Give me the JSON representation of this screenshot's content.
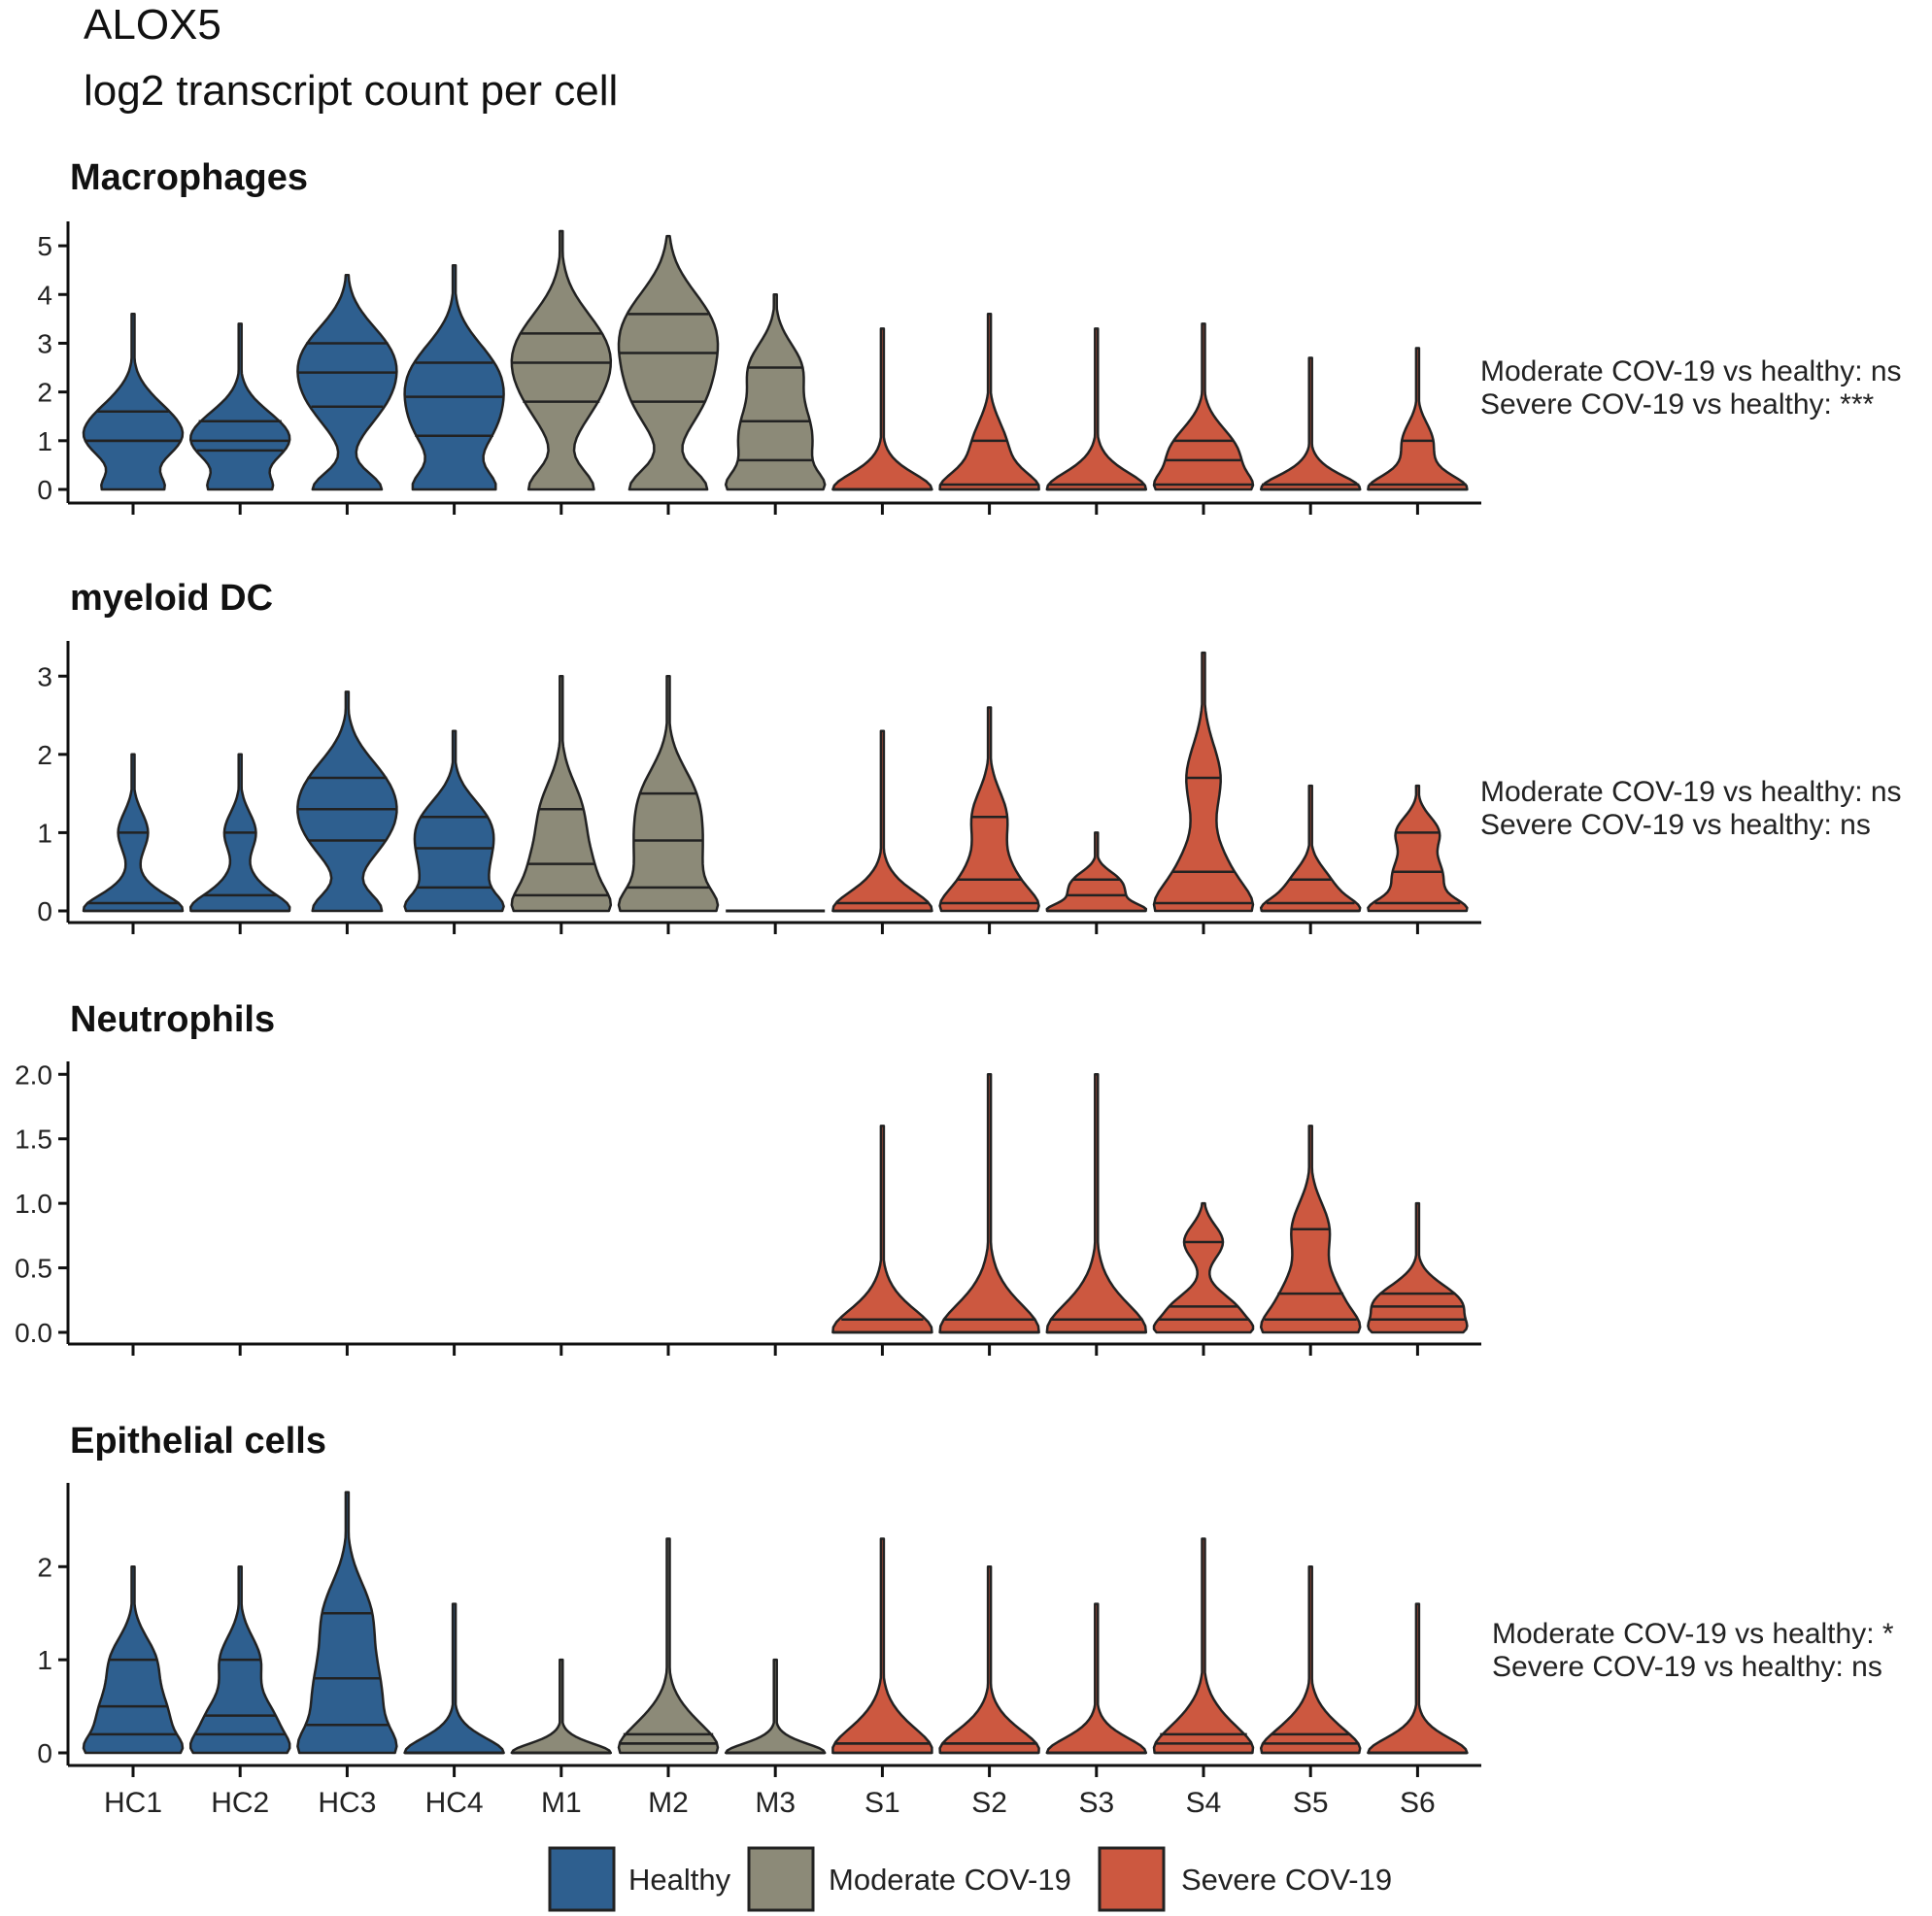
{
  "figure": {
    "title": "ALOX5",
    "subtitle": "log2 transcript count per cell"
  },
  "legend": [
    {
      "label": "Healthy",
      "color": "#2e5f8f"
    },
    {
      "label": "Moderate COV-19",
      "color": "#8c8a78"
    },
    {
      "label": "Severe COV-19",
      "color": "#cc5840"
    }
  ],
  "chart_data": [
    {
      "type": "violin",
      "title": "Macrophages",
      "categories": [
        "HC1",
        "HC2",
        "HC3",
        "HC4",
        "M1",
        "M2",
        "M3",
        "S1",
        "S2",
        "S3",
        "S4",
        "S5",
        "S6"
      ],
      "groups": [
        "Healthy",
        "Healthy",
        "Healthy",
        "Healthy",
        "Moderate COV-19",
        "Moderate COV-19",
        "Moderate COV-19",
        "Severe COV-19",
        "Severe COV-19",
        "Severe COV-19",
        "Severe COV-19",
        "Severe COV-19",
        "Severe COV-19"
      ],
      "yticks": [
        0,
        1,
        2,
        3,
        4,
        5
      ],
      "ylim": [
        0,
        5.5
      ],
      "max": [
        3.6,
        3.4,
        4.4,
        4.6,
        5.3,
        5.2,
        4.0,
        3.3,
        3.6,
        3.3,
        3.4,
        2.7,
        2.9
      ],
      "quantiles": [
        [
          1.0,
          1.0,
          1.6
        ],
        [
          0.8,
          1.0,
          1.4
        ],
        [
          1.7,
          2.4,
          3.0
        ],
        [
          1.1,
          1.9,
          2.6
        ],
        [
          1.8,
          2.6,
          3.2
        ],
        [
          1.8,
          2.8,
          3.6
        ],
        [
          0.6,
          1.4,
          2.5
        ],
        [
          0,
          0,
          0
        ],
        [
          0,
          0.1,
          1.0
        ],
        [
          0,
          0,
          0.1
        ],
        [
          0.1,
          0.6,
          1.0
        ],
        [
          0,
          0,
          0.1
        ],
        [
          0,
          0.1,
          1.0
        ]
      ],
      "annotations": [
        "Moderate COV-19 vs healthy: ns",
        "Severe COV-19 vs healthy: ***"
      ]
    },
    {
      "type": "violin",
      "title": "myeloid DC",
      "categories": [
        "HC1",
        "HC2",
        "HC3",
        "HC4",
        "M1",
        "M2",
        "M3",
        "S1",
        "S2",
        "S3",
        "S4",
        "S5",
        "S6"
      ],
      "groups": [
        "Healthy",
        "Healthy",
        "Healthy",
        "Healthy",
        "Moderate COV-19",
        "Moderate COV-19",
        "Moderate COV-19",
        "Severe COV-19",
        "Severe COV-19",
        "Severe COV-19",
        "Severe COV-19",
        "Severe COV-19",
        "Severe COV-19"
      ],
      "yticks": [
        0,
        1,
        2,
        3
      ],
      "ylim": [
        0,
        3.45
      ],
      "max": [
        2.0,
        2.0,
        2.8,
        2.3,
        3.0,
        3.0,
        0,
        2.3,
        2.6,
        1.0,
        3.3,
        1.6,
        1.6
      ],
      "quantiles": [
        [
          0,
          0.1,
          1.0
        ],
        [
          0,
          0.2,
          1.0
        ],
        [
          0.9,
          1.3,
          1.7
        ],
        [
          0.3,
          0.8,
          1.2
        ],
        [
          0.2,
          0.6,
          1.3
        ],
        [
          0.3,
          0.9,
          1.5
        ],
        [
          0,
          0,
          0
        ],
        [
          0,
          0,
          0.1
        ],
        [
          0.1,
          0.4,
          1.2
        ],
        [
          0,
          0.2,
          0.4
        ],
        [
          0.1,
          0.5,
          1.7
        ],
        [
          0,
          0.1,
          0.4
        ],
        [
          0.1,
          0.5,
          1.0
        ]
      ],
      "annotations": [
        "Moderate COV-19 vs healthy: ns",
        "Severe COV-19 vs healthy: ns"
      ]
    },
    {
      "type": "violin",
      "title": "Neutrophils",
      "categories": [
        "HC1",
        "HC2",
        "HC3",
        "HC4",
        "M1",
        "M2",
        "M3",
        "S1",
        "S2",
        "S3",
        "S4",
        "S5",
        "S6"
      ],
      "groups": [
        "Healthy",
        "Healthy",
        "Healthy",
        "Healthy",
        "Moderate COV-19",
        "Moderate COV-19",
        "Moderate COV-19",
        "Severe COV-19",
        "Severe COV-19",
        "Severe COV-19",
        "Severe COV-19",
        "Severe COV-19",
        "Severe COV-19"
      ],
      "yticks": [
        "0.0",
        "0.5",
        "1.0",
        "1.5",
        "2.0"
      ],
      "ylim": [
        0,
        2.1
      ],
      "max": [
        null,
        null,
        null,
        null,
        null,
        null,
        null,
        1.6,
        2.0,
        2.0,
        1.0,
        1.6,
        1.0
      ],
      "quantiles": [
        [],
        [],
        [],
        [],
        [],
        [],
        [],
        [
          0,
          0,
          0.1
        ],
        [
          0,
          0,
          0.1
        ],
        [
          0,
          0,
          0.1
        ],
        [
          0.1,
          0.2,
          0.7
        ],
        [
          0.1,
          0.3,
          0.8
        ],
        [
          0.1,
          0.2,
          0.3
        ]
      ],
      "annotations": []
    },
    {
      "type": "violin",
      "title": "Epithelial cells",
      "categories": [
        "HC1",
        "HC2",
        "HC3",
        "HC4",
        "M1",
        "M2",
        "M3",
        "S1",
        "S2",
        "S3",
        "S4",
        "S5",
        "S6"
      ],
      "groups": [
        "Healthy",
        "Healthy",
        "Healthy",
        "Healthy",
        "Moderate COV-19",
        "Moderate COV-19",
        "Moderate COV-19",
        "Severe COV-19",
        "Severe COV-19",
        "Severe COV-19",
        "Severe COV-19",
        "Severe COV-19",
        "Severe COV-19"
      ],
      "yticks": [
        0,
        1,
        2
      ],
      "ylim": [
        0,
        2.9
      ],
      "max": [
        2.0,
        2.0,
        2.8,
        1.6,
        1.0,
        2.3,
        1.0,
        2.3,
        2.0,
        1.6,
        2.3,
        2.0,
        1.6
      ],
      "quantiles": [
        [
          0.2,
          0.5,
          1.0
        ],
        [
          0.2,
          0.4,
          1.0
        ],
        [
          0.3,
          0.8,
          1.5
        ],
        [
          0,
          0,
          0
        ],
        [
          0,
          0,
          0
        ],
        [
          0.1,
          0.1,
          0.2
        ],
        [
          0,
          0,
          0
        ],
        [
          0,
          0.1,
          0.1
        ],
        [
          0,
          0.1,
          0.1
        ],
        [
          0,
          0,
          0
        ],
        [
          0,
          0.1,
          0.2
        ],
        [
          0,
          0.1,
          0.2
        ],
        [
          0,
          0,
          0
        ]
      ],
      "annotations": [
        "Moderate COV-19 vs healthy: *",
        "Severe COV-19 vs healthy: ns"
      ]
    }
  ]
}
